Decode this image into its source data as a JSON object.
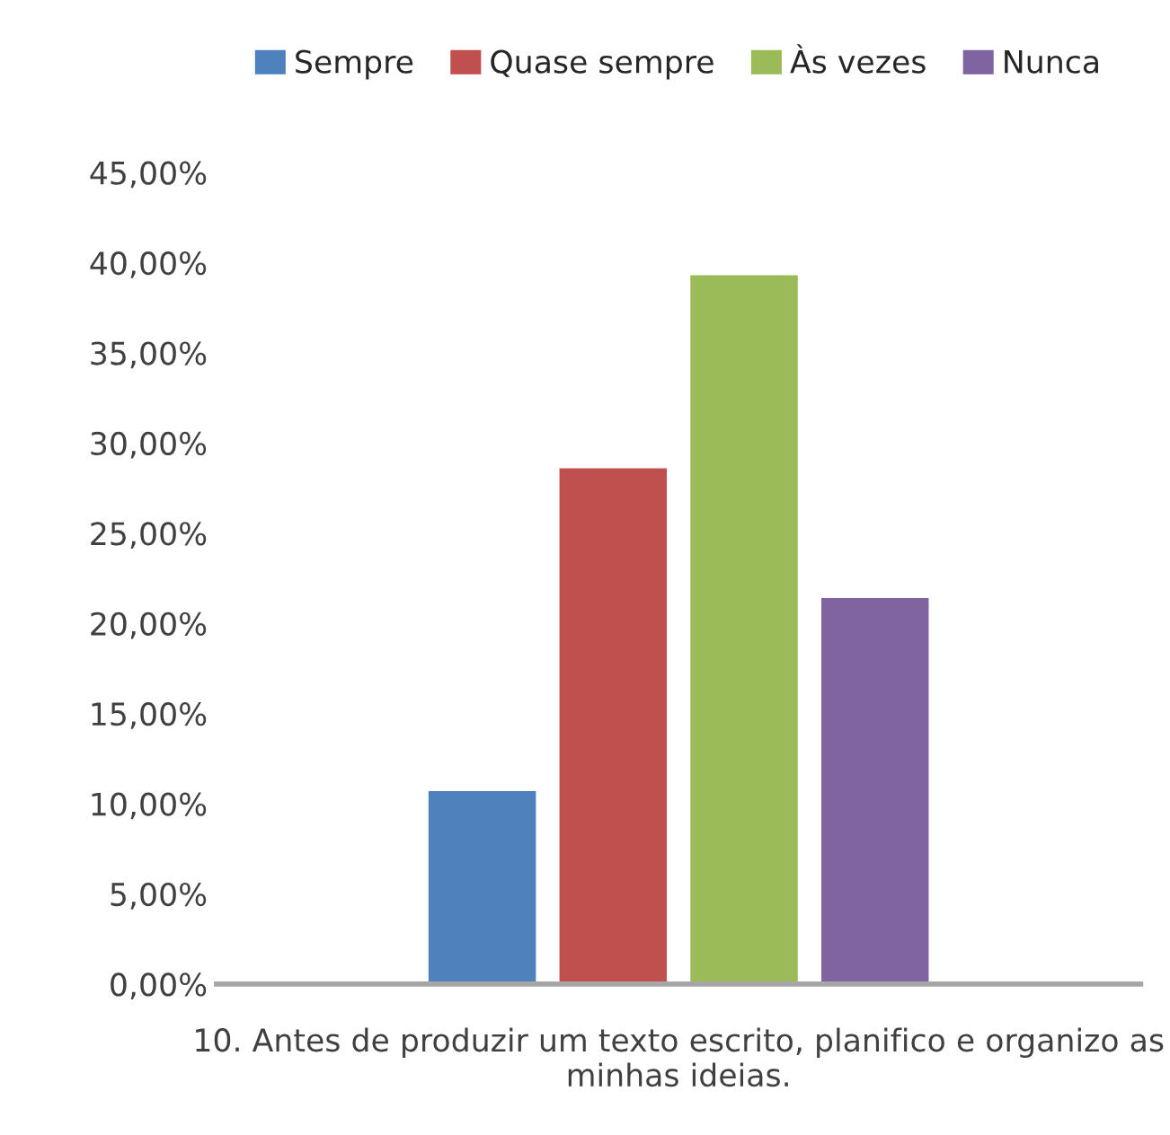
{
  "chart_data": {
    "type": "bar",
    "xlabel": "10. Antes de produzir um texto escrito, planifico e organizo as minhas ideias.",
    "categories": [
      null
    ],
    "series": [
      {
        "name": "Sempre",
        "color": "#4f81bd",
        "values": [
          10.7
        ]
      },
      {
        "name": "Quase sempre",
        "color": "#c0504d",
        "values": [
          28.6
        ]
      },
      {
        "name": "Às vezes",
        "color": "#9bbb59",
        "values": [
          39.3
        ]
      },
      {
        "name": "Nunca",
        "color": "#8064a2",
        "values": [
          21.4
        ]
      }
    ],
    "ylim": [
      0,
      45
    ],
    "yticks": [
      {
        "value": 0,
        "label": "0,00%"
      },
      {
        "value": 5,
        "label": "5,00%"
      },
      {
        "value": 10,
        "label": "10,00%"
      },
      {
        "value": 15,
        "label": "15,00%"
      },
      {
        "value": 20,
        "label": "20,00%"
      },
      {
        "value": 25,
        "label": "25,00%"
      },
      {
        "value": 30,
        "label": "30,00%"
      },
      {
        "value": 35,
        "label": "35,00%"
      },
      {
        "value": 40,
        "label": "40,00%"
      },
      {
        "value": 45,
        "label": "45,00%"
      }
    ],
    "grid": false,
    "legend": "top"
  }
}
